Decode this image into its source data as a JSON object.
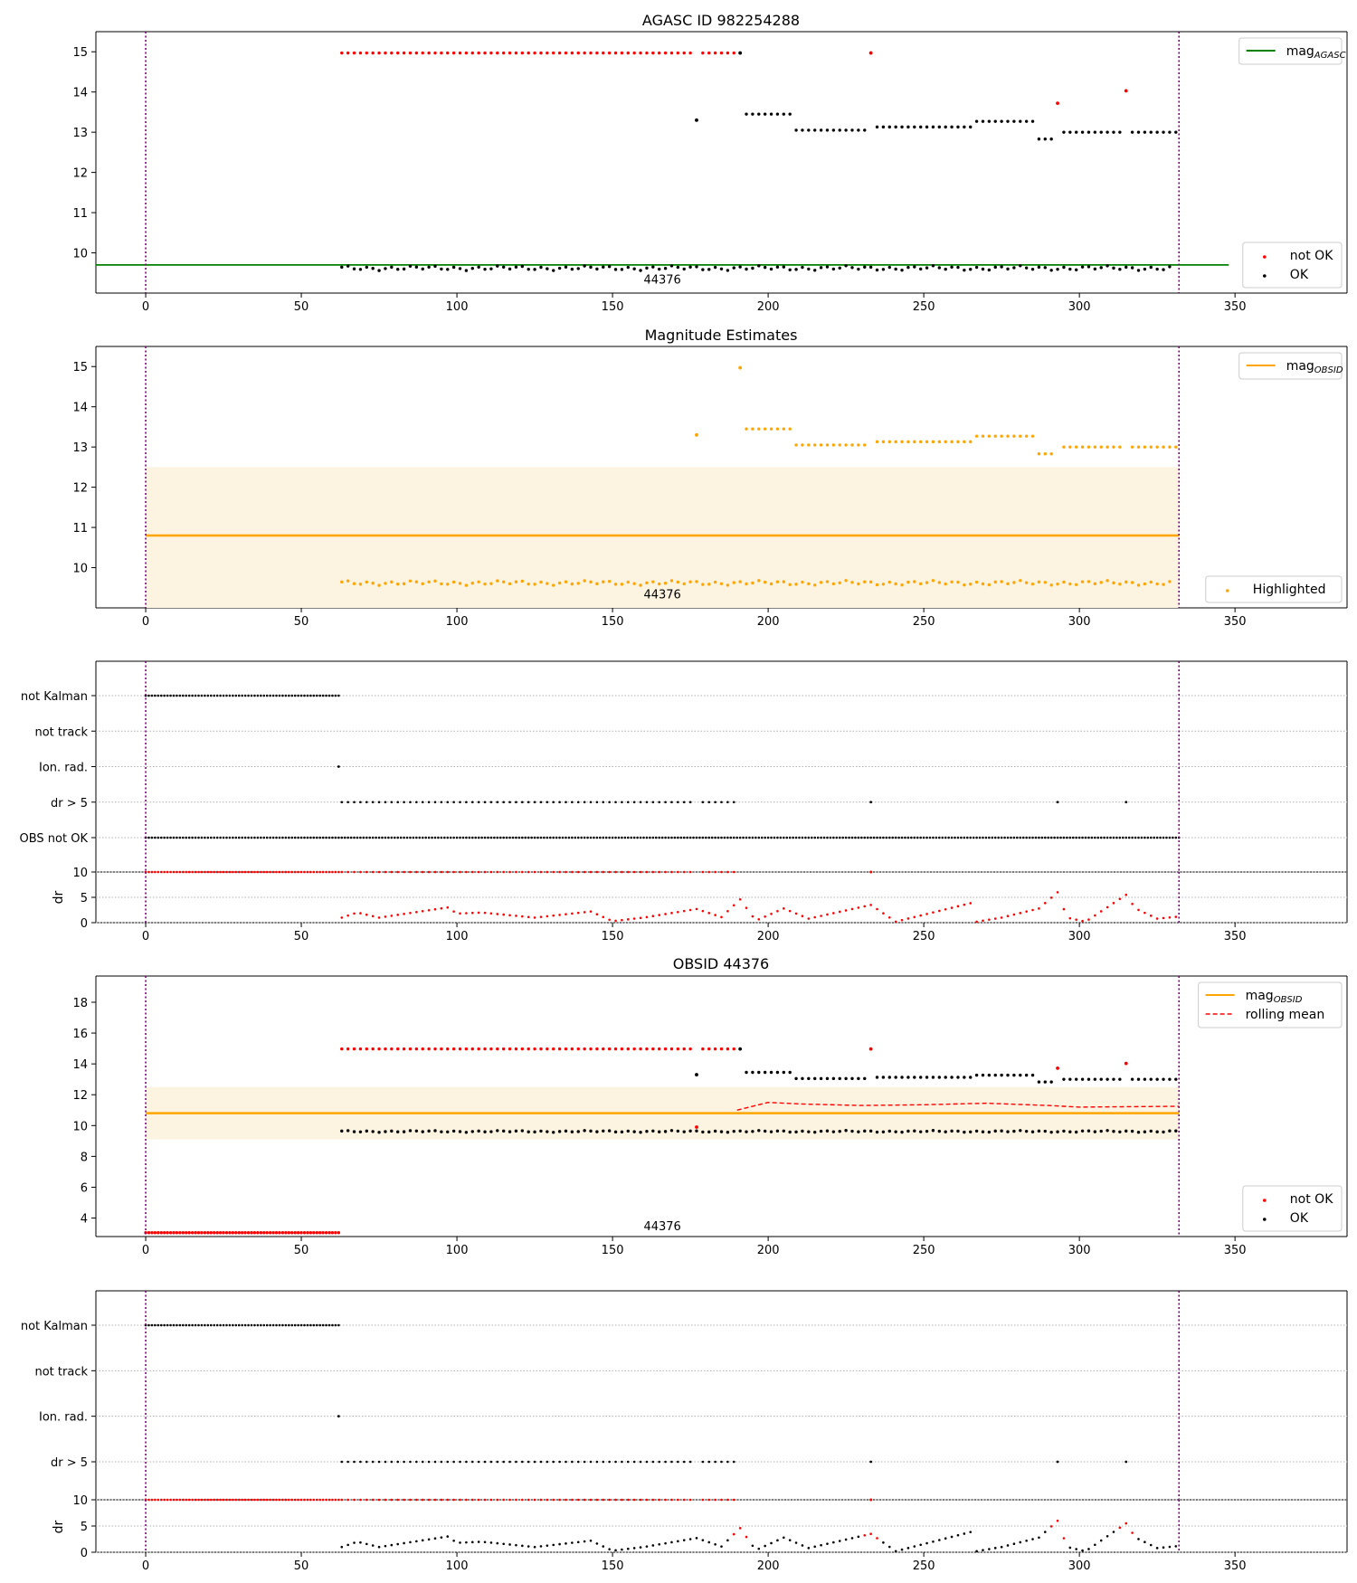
{
  "colors": {
    "ok": "#000000",
    "not_ok": "#ff0000",
    "agasc_line": "#008000",
    "obsid_line": "#ffa500",
    "band": "#fdf3e1",
    "vline": "#800080",
    "rolling": "#ff0000",
    "grid": "#b0b0b0"
  },
  "chart_data": [
    {
      "id": "p1",
      "type": "scatter",
      "title": "AGASC ID 982254288",
      "xlim": [
        -16,
        386
      ],
      "ylim": [
        9.0,
        15.5
      ],
      "xticks": [
        0,
        50,
        100,
        150,
        200,
        250,
        300,
        350
      ],
      "yticks": [
        10,
        11,
        12,
        13,
        14,
        15
      ],
      "vlines": [
        0,
        332
      ],
      "hline": {
        "y": 9.7,
        "x": [
          -16,
          348
        ],
        "color_key": "agasc_line",
        "label": "mag",
        "label_sub": "AGASC"
      },
      "annotation": {
        "text": "44376",
        "x": 166,
        "y": 9.35
      },
      "legends": [
        {
          "corner": "top-right",
          "items": [
            {
              "kind": "line",
              "color_key": "agasc_line",
              "text": "mag",
              "sub": "AGASC"
            }
          ]
        },
        {
          "corner": "bottom-right",
          "items": [
            {
              "kind": "marker",
              "color_key": "not_ok",
              "text": "not OK"
            },
            {
              "kind": "marker",
              "color_key": "ok",
              "text": "OK"
            }
          ]
        }
      ],
      "series": [
        {
          "name": "not OK",
          "color_key": "not_ok",
          "segments": [
            {
              "x": [
                63,
                176
              ],
              "y": 14.97
            },
            {
              "x": [
                179,
                190
              ],
              "y": 14.97
            }
          ],
          "points": [
            [
              233,
              14.97
            ],
            [
              293,
              13.72
            ],
            [
              315,
              14.03
            ]
          ]
        },
        {
          "name": "OK",
          "color_key": "ok",
          "segments": [
            {
              "x": [
                63,
                330
              ],
              "y": 9.62,
              "wobble": 0.04
            },
            {
              "x": [
                193,
                207
              ],
              "y": 13.45
            },
            {
              "x": [
                209,
                231
              ],
              "y": 13.05
            },
            {
              "x": [
                235,
                265
              ],
              "y": 13.13
            },
            {
              "x": [
                267,
                285
              ],
              "y": 13.27
            },
            {
              "x": [
                287,
                292
              ],
              "y": 12.83
            },
            {
              "x": [
                295,
                313
              ],
              "y": 13.0
            },
            {
              "x": [
                317,
                332
              ],
              "y": 13.0
            }
          ],
          "points": [
            [
              177,
              13.3
            ],
            [
              191,
              14.97
            ]
          ]
        }
      ]
    },
    {
      "id": "p2",
      "type": "scatter",
      "title": "Magnitude Estimates",
      "xlim": [
        -16,
        386
      ],
      "ylim": [
        9.0,
        15.5
      ],
      "xticks": [
        0,
        50,
        100,
        150,
        200,
        250,
        300,
        350
      ],
      "yticks": [
        10,
        11,
        12,
        13,
        14,
        15
      ],
      "vlines": [
        0,
        332
      ],
      "band": {
        "x": [
          0,
          332
        ],
        "y": [
          9.0,
          12.5
        ]
      },
      "hline": {
        "y": 10.8,
        "x": [
          0,
          332
        ],
        "color_key": "obsid_line",
        "label": "mag",
        "label_sub": "OBSID"
      },
      "annotation": {
        "text": "44376",
        "x": 166,
        "y": 9.35
      },
      "legends": [
        {
          "corner": "top-right",
          "items": [
            {
              "kind": "line",
              "color_key": "obsid_line",
              "text": "mag",
              "sub": "OBSID"
            }
          ]
        },
        {
          "corner": "bottom-right",
          "items": [
            {
              "kind": "marker",
              "color_key": "obsid_line",
              "text": "Highlighted"
            }
          ]
        }
      ],
      "series": [
        {
          "name": "Highlighted",
          "color_key": "obsid_line",
          "segments": [
            {
              "x": [
                63,
                330
              ],
              "y": 9.62,
              "wobble": 0.04
            },
            {
              "x": [
                193,
                207
              ],
              "y": 13.45
            },
            {
              "x": [
                209,
                231
              ],
              "y": 13.05
            },
            {
              "x": [
                235,
                265
              ],
              "y": 13.13
            },
            {
              "x": [
                267,
                285
              ],
              "y": 13.27
            },
            {
              "x": [
                287,
                292
              ],
              "y": 12.83
            },
            {
              "x": [
                295,
                313
              ],
              "y": 13.0
            },
            {
              "x": [
                317,
                332
              ],
              "y": 13.0
            }
          ],
          "points": [
            [
              177,
              13.3
            ],
            [
              191,
              14.97
            ]
          ]
        }
      ]
    },
    {
      "id": "p3",
      "type": "scatter",
      "title": "",
      "xlim": [
        -16,
        386
      ],
      "categories": [
        "not Kalman",
        "not track",
        "Ion. rad.",
        "dr > 5",
        "OBS not OK"
      ],
      "vlines": [
        0,
        332
      ],
      "series": [
        {
          "name": "not Kalman",
          "color_key": "ok",
          "segments": [
            {
              "x": [
                0,
                62
              ],
              "step": 1
            }
          ],
          "points": []
        },
        {
          "name": "not track",
          "color_key": "ok",
          "segments": [],
          "points": []
        },
        {
          "name": "Ion. rad.",
          "color_key": "ok",
          "segments": [],
          "points": [
            [
              62
            ]
          ]
        },
        {
          "name": "dr > 5",
          "color_key": "ok",
          "segments": [
            {
              "x": [
                63,
                176
              ]
            },
            {
              "x": [
                179,
                190
              ]
            }
          ],
          "points": [
            [
              233
            ],
            [
              293
            ],
            [
              315
            ]
          ]
        },
        {
          "name": "OBS not OK",
          "color_key": "ok",
          "segments": [
            {
              "x": [
                0,
                332
              ],
              "step": 1
            }
          ],
          "points": []
        }
      ]
    },
    {
      "id": "p4",
      "type": "scatter",
      "title": "",
      "ylabel": "dr",
      "xlim": [
        -16,
        386
      ],
      "ylim": [
        0,
        10
      ],
      "xticks": [
        0,
        50,
        100,
        150,
        200,
        250,
        300,
        350
      ],
      "yticks": [
        0,
        5,
        10
      ],
      "vlines": [
        0,
        332
      ],
      "series": [
        {
          "name": "dr",
          "color_key": "not_ok",
          "top_segments": [
            {
              "x": [
                0,
                62
              ],
              "step": 1
            },
            {
              "x": [
                63,
                176
              ]
            },
            {
              "x": [
                179,
                190
              ]
            }
          ],
          "top_points": [
            233
          ],
          "peaks": [
            [
              63,
              1.0
            ],
            [
              68,
              2.0
            ],
            [
              75,
              1.0
            ],
            [
              97,
              3.0
            ],
            [
              100,
              1.8
            ],
            [
              108,
              2.0
            ],
            [
              125,
              1.0
            ],
            [
              143,
              2.2
            ],
            [
              150,
              0.3
            ],
            [
              160,
              1.0
            ],
            [
              177,
              2.7
            ],
            [
              185,
              1.1
            ],
            [
              191,
              4.6
            ],
            [
              196,
              0.4
            ],
            [
              205,
              2.8
            ],
            [
              213,
              0.8
            ],
            [
              233,
              3.5
            ],
            [
              241,
              0.2
            ],
            [
              266,
              4.0
            ],
            [
              267,
              0.2
            ],
            [
              275,
              1.0
            ],
            [
              287,
              2.8
            ],
            [
              293,
              6.0
            ],
            [
              296,
              1.0
            ],
            [
              302,
              0.2
            ],
            [
              315,
              5.5
            ],
            [
              318,
              2.8
            ],
            [
              325,
              0.8
            ],
            [
              332,
              1.2
            ]
          ]
        }
      ]
    },
    {
      "id": "p5",
      "type": "scatter",
      "title": "OBSID 44376",
      "xlim": [
        -16,
        386
      ],
      "ylim": [
        2.8,
        19.7
      ],
      "xticks": [
        0,
        50,
        100,
        150,
        200,
        250,
        300,
        350
      ],
      "yticks": [
        4,
        6,
        8,
        10,
        12,
        14,
        16,
        18
      ],
      "vlines": [
        0,
        332
      ],
      "band": {
        "x": [
          0,
          332
        ],
        "y": [
          9.1,
          12.5
        ]
      },
      "hline": {
        "y": 10.8,
        "x": [
          0,
          332
        ],
        "color_key": "obsid_line",
        "label": "mag",
        "label_sub": "OBSID"
      },
      "annotation": {
        "text": "44376",
        "x": 166,
        "y": 3.5
      },
      "legends": [
        {
          "corner": "top-right",
          "items": [
            {
              "kind": "line",
              "color_key": "obsid_line",
              "text": "mag",
              "sub": "OBSID"
            },
            {
              "kind": "dashed",
              "color_key": "rolling",
              "text": "rolling mean"
            }
          ]
        },
        {
          "corner": "bottom-right",
          "items": [
            {
              "kind": "marker",
              "color_key": "not_ok",
              "text": "not OK"
            },
            {
              "kind": "marker",
              "color_key": "ok",
              "text": "OK"
            }
          ]
        }
      ],
      "series": [
        {
          "name": "not OK",
          "color_key": "not_ok",
          "segments": [
            {
              "x": [
                0,
                62
              ],
              "y": 3.05,
              "step": 1
            },
            {
              "x": [
                63,
                176
              ],
              "y": 14.97
            },
            {
              "x": [
                179,
                190
              ],
              "y": 14.97
            }
          ],
          "points": [
            [
              233,
              14.97
            ],
            [
              293,
              13.72
            ],
            [
              315,
              14.03
            ],
            [
              177,
              9.9
            ]
          ]
        },
        {
          "name": "OK",
          "color_key": "ok",
          "segments": [
            {
              "x": [
                63,
                332
              ],
              "y": 9.62,
              "wobble": 0.04
            },
            {
              "x": [
                193,
                207
              ],
              "y": 13.45
            },
            {
              "x": [
                209,
                231
              ],
              "y": 13.05
            },
            {
              "x": [
                235,
                265
              ],
              "y": 13.13
            },
            {
              "x": [
                267,
                285
              ],
              "y": 13.27
            },
            {
              "x": [
                287,
                292
              ],
              "y": 12.83
            },
            {
              "x": [
                295,
                313
              ],
              "y": 13.0
            },
            {
              "x": [
                317,
                332
              ],
              "y": 13.0
            }
          ],
          "points": [
            [
              177,
              13.3
            ],
            [
              191,
              14.97
            ]
          ]
        },
        {
          "name": "rolling mean",
          "color_key": "rolling",
          "line": [
            [
              190,
              11.0
            ],
            [
              200,
              11.5
            ],
            [
              210,
              11.4
            ],
            [
              230,
              11.3
            ],
            [
              250,
              11.35
            ],
            [
              270,
              11.45
            ],
            [
              290,
              11.3
            ],
            [
              300,
              11.2
            ],
            [
              332,
              11.25
            ]
          ]
        }
      ]
    },
    {
      "id": "p6",
      "type": "scatter",
      "title": "",
      "xlim": [
        -16,
        386
      ],
      "categories": [
        "not Kalman",
        "not track",
        "Ion. rad.",
        "dr > 5"
      ],
      "vlines": [
        0,
        332
      ],
      "series": [
        {
          "name": "not Kalman",
          "color_key": "ok",
          "segments": [
            {
              "x": [
                0,
                62
              ],
              "step": 1
            }
          ],
          "points": []
        },
        {
          "name": "not track",
          "color_key": "ok",
          "segments": [],
          "points": []
        },
        {
          "name": "Ion. rad.",
          "color_key": "ok",
          "segments": [],
          "points": [
            [
              62
            ]
          ]
        },
        {
          "name": "dr > 5",
          "color_key": "ok",
          "segments": [
            {
              "x": [
                63,
                176
              ]
            },
            {
              "x": [
                179,
                190
              ]
            }
          ],
          "points": [
            [
              233
            ],
            [
              293
            ],
            [
              315
            ]
          ]
        }
      ]
    },
    {
      "id": "p7",
      "type": "scatter",
      "title": "",
      "ylabel": "dr",
      "xlim": [
        -16,
        386
      ],
      "ylim": [
        0,
        10
      ],
      "xticks": [
        0,
        50,
        100,
        150,
        200,
        250,
        300,
        350
      ],
      "yticks": [
        0,
        5,
        10
      ],
      "vlines": [
        0,
        332
      ],
      "series": [
        {
          "name": "dr",
          "color_key": "ok",
          "top_segments": [
            {
              "x": [
                0,
                62
              ],
              "step": 1
            },
            {
              "x": [
                63,
                176
              ]
            },
            {
              "x": [
                179,
                190
              ]
            }
          ],
          "top_points": [
            233
          ],
          "peaks": [
            [
              63,
              1.0
            ],
            [
              68,
              2.0
            ],
            [
              75,
              1.0
            ],
            [
              97,
              3.0
            ],
            [
              100,
              1.8
            ],
            [
              108,
              2.0
            ],
            [
              125,
              1.0
            ],
            [
              143,
              2.2
            ],
            [
              150,
              0.3
            ],
            [
              160,
              1.0
            ],
            [
              177,
              2.7
            ],
            [
              185,
              1.1
            ],
            [
              191,
              4.6
            ],
            [
              196,
              0.4
            ],
            [
              205,
              2.8
            ],
            [
              213,
              0.8
            ],
            [
              233,
              3.5
            ],
            [
              241,
              0.2
            ],
            [
              266,
              4.0
            ],
            [
              267,
              0.2
            ],
            [
              275,
              1.0
            ],
            [
              287,
              2.8
            ],
            [
              293,
              6.0
            ],
            [
              296,
              1.0
            ],
            [
              302,
              0.2
            ],
            [
              315,
              5.5
            ],
            [
              318,
              2.8
            ],
            [
              325,
              0.8
            ],
            [
              332,
              1.2
            ]
          ]
        }
      ]
    }
  ]
}
